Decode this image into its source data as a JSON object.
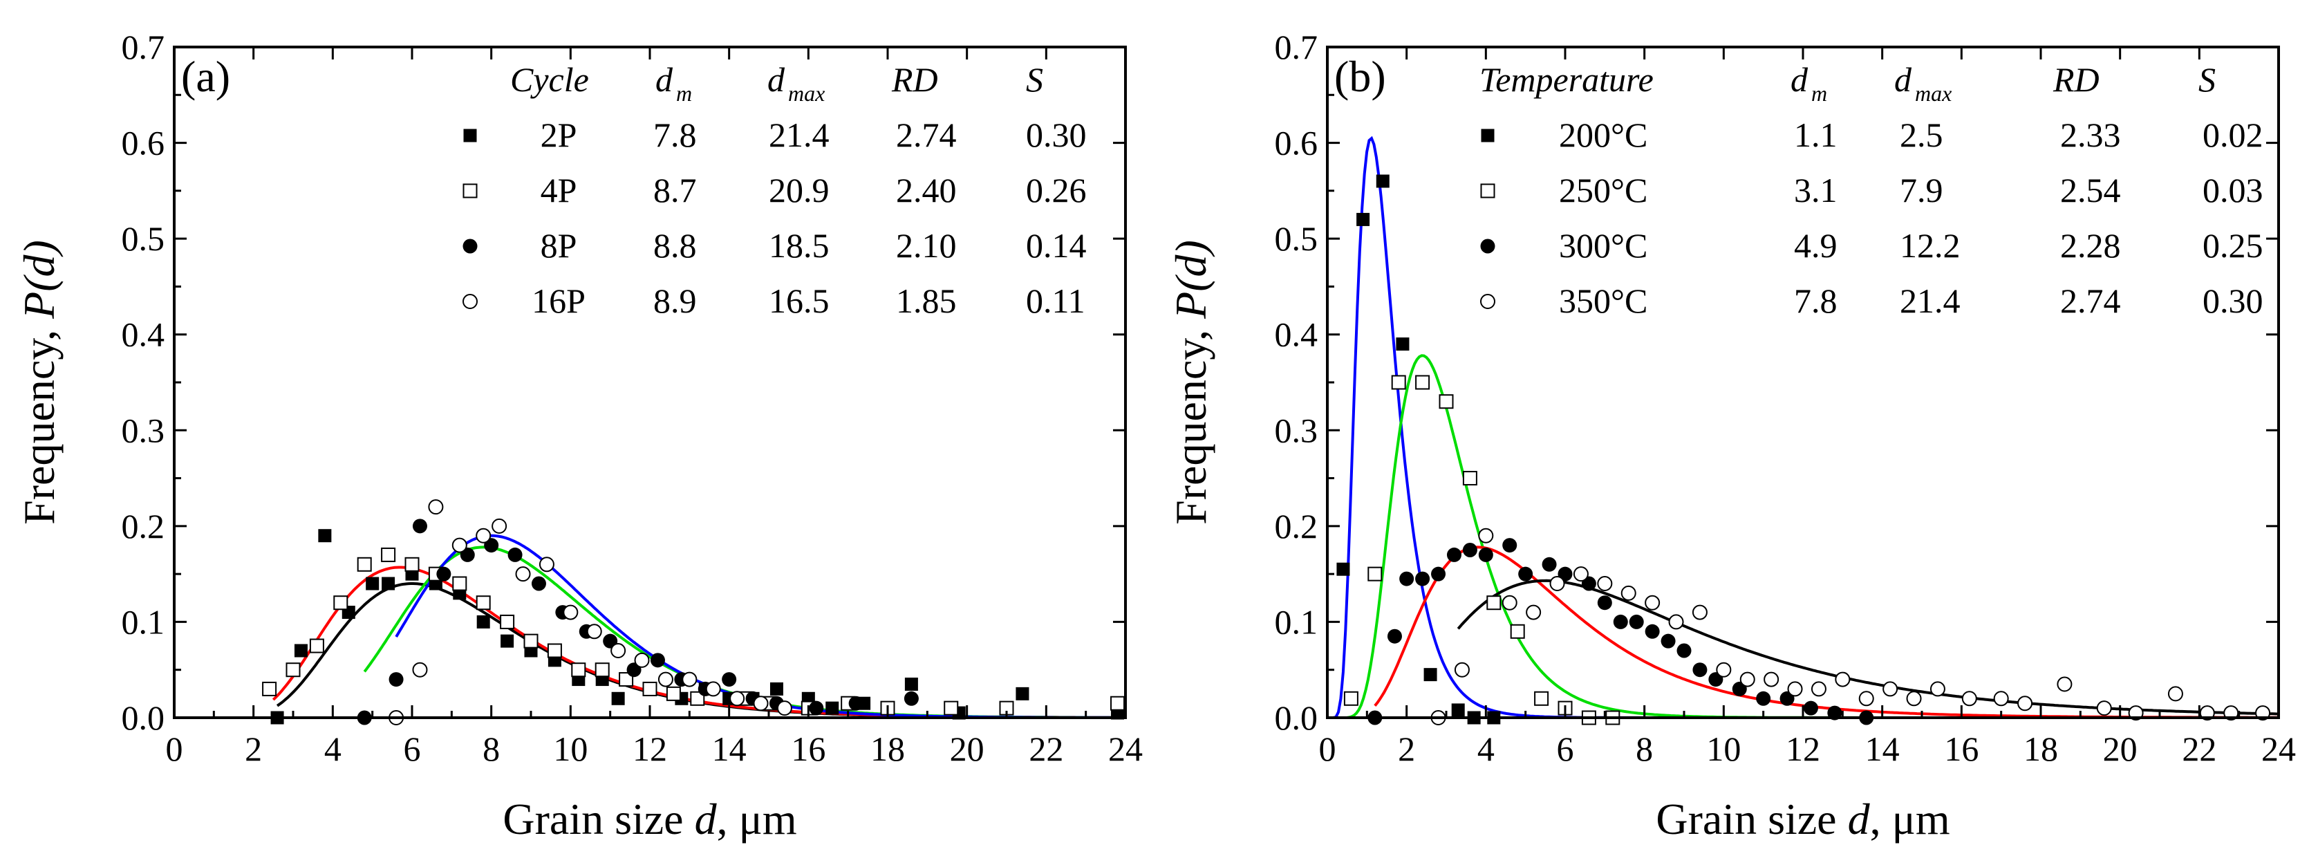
{
  "chart_data": [
    {
      "panel": "(a)",
      "type": "scatter",
      "xlabel_main": "Grain size ",
      "xlabel_var": "d",
      "xlabel_unit": ", μm",
      "ylabel_main": "Frequency, ",
      "ylabel_var": "P(d)",
      "xlim": [
        0,
        24
      ],
      "ylim": [
        0,
        0.7
      ],
      "x_ticks": [
        "0",
        "2",
        "4",
        "6",
        "8",
        "10",
        "12",
        "14",
        "16",
        "18",
        "20",
        "22",
        "24"
      ],
      "y_ticks": [
        "0.0",
        "0.1",
        "0.2",
        "0.3",
        "0.4",
        "0.5",
        "0.6",
        "0.7"
      ],
      "legend": {
        "headers": [
          "Cycle",
          "d",
          "m",
          "d",
          "max",
          "RD",
          "S"
        ],
        "rows": [
          {
            "label": "2P",
            "dm": "7.8",
            "dmax": "21.4",
            "rd": "2.74",
            "s": "0.30",
            "marker": "filled-square"
          },
          {
            "label": "4P",
            "dm": "8.7",
            "dmax": "20.9",
            "rd": "2.40",
            "s": "0.26",
            "marker": "open-square"
          },
          {
            "label": "8P",
            "dm": "8.8",
            "dmax": "18.5",
            "rd": "2.10",
            "s": "0.14",
            "marker": "filled-circle"
          },
          {
            "label": "16P",
            "dm": "8.9",
            "dmax": "16.5",
            "rd": "1.85",
            "s": "0.11",
            "marker": "open-circle"
          }
        ]
      },
      "series": [
        {
          "name": "2P",
          "marker": "filled-square",
          "fit_color": "#000000",
          "fit_peak": 6.0,
          "fit_height": 0.14,
          "fit_range": [
            2.6,
            24
          ],
          "points": [
            [
              2.6,
              0.0
            ],
            [
              3.2,
              0.07
            ],
            [
              3.8,
              0.19
            ],
            [
              4.4,
              0.11
            ],
            [
              5.0,
              0.14
            ],
            [
              5.4,
              0.14
            ],
            [
              6.0,
              0.15
            ],
            [
              6.6,
              0.14
            ],
            [
              7.2,
              0.13
            ],
            [
              7.8,
              0.1
            ],
            [
              8.4,
              0.08
            ],
            [
              9.0,
              0.07
            ],
            [
              9.6,
              0.06
            ],
            [
              10.2,
              0.04
            ],
            [
              10.8,
              0.04
            ],
            [
              11.2,
              0.02
            ],
            [
              12.0,
              0.03
            ],
            [
              12.8,
              0.02
            ],
            [
              13.4,
              0.03
            ],
            [
              14.0,
              0.02
            ],
            [
              14.6,
              0.02
            ],
            [
              15.2,
              0.03
            ],
            [
              16.0,
              0.02
            ],
            [
              16.6,
              0.01
            ],
            [
              17.4,
              0.015
            ],
            [
              18.6,
              0.035
            ],
            [
              19.8,
              0.005
            ],
            [
              21.4,
              0.025
            ],
            [
              23.8,
              0.005
            ]
          ]
        },
        {
          "name": "4P",
          "marker": "open-square",
          "fit_color": "#ff0000",
          "fit_peak": 5.7,
          "fit_height": 0.157,
          "fit_range": [
            2.5,
            24
          ],
          "points": [
            [
              2.4,
              0.03
            ],
            [
              3.0,
              0.05
            ],
            [
              3.6,
              0.075
            ],
            [
              4.2,
              0.12
            ],
            [
              4.8,
              0.16
            ],
            [
              5.4,
              0.17
            ],
            [
              6.0,
              0.16
            ],
            [
              6.6,
              0.15
            ],
            [
              7.2,
              0.14
            ],
            [
              7.8,
              0.12
            ],
            [
              8.4,
              0.1
            ],
            [
              9.0,
              0.08
            ],
            [
              9.6,
              0.07
            ],
            [
              10.2,
              0.05
            ],
            [
              10.8,
              0.05
            ],
            [
              11.4,
              0.04
            ],
            [
              12.0,
              0.03
            ],
            [
              12.6,
              0.025
            ],
            [
              13.2,
              0.02
            ],
            [
              14.4,
              0.02
            ],
            [
              15.0,
              0.015
            ],
            [
              16.0,
              0.01
            ],
            [
              17.0,
              0.015
            ],
            [
              18.0,
              0.01
            ],
            [
              19.6,
              0.01
            ],
            [
              21.0,
              0.01
            ],
            [
              23.8,
              0.015
            ]
          ]
        },
        {
          "name": "8P",
          "marker": "filled-circle",
          "fit_color": "#00dd00",
          "fit_peak": 7.8,
          "fit_height": 0.178,
          "fit_range": [
            4.8,
            24
          ],
          "points": [
            [
              4.8,
              0.0
            ],
            [
              5.6,
              0.04
            ],
            [
              6.2,
              0.2
            ],
            [
              6.8,
              0.15
            ],
            [
              7.4,
              0.17
            ],
            [
              8.0,
              0.18
            ],
            [
              8.6,
              0.17
            ],
            [
              9.2,
              0.14
            ],
            [
              9.8,
              0.11
            ],
            [
              10.4,
              0.09
            ],
            [
              11.0,
              0.08
            ],
            [
              11.6,
              0.05
            ],
            [
              12.2,
              0.06
            ],
            [
              12.8,
              0.04
            ],
            [
              13.4,
              0.03
            ],
            [
              14.0,
              0.04
            ],
            [
              14.6,
              0.02
            ],
            [
              15.2,
              0.015
            ],
            [
              16.2,
              0.01
            ],
            [
              17.2,
              0.015
            ],
            [
              18.6,
              0.02
            ]
          ]
        },
        {
          "name": "16P",
          "marker": "open-circle",
          "fit_color": "#0000ff",
          "fit_peak": 8.0,
          "fit_height": 0.19,
          "fit_range": [
            5.6,
            24
          ],
          "points": [
            [
              5.6,
              0.0
            ],
            [
              6.2,
              0.05
            ],
            [
              6.6,
              0.22
            ],
            [
              7.2,
              0.18
            ],
            [
              7.8,
              0.19
            ],
            [
              8.2,
              0.2
            ],
            [
              8.8,
              0.15
            ],
            [
              9.4,
              0.16
            ],
            [
              10.0,
              0.11
            ],
            [
              10.6,
              0.09
            ],
            [
              11.2,
              0.07
            ],
            [
              11.8,
              0.06
            ],
            [
              12.4,
              0.04
            ],
            [
              13.0,
              0.04
            ],
            [
              13.6,
              0.03
            ],
            [
              14.2,
              0.02
            ],
            [
              14.8,
              0.015
            ],
            [
              15.4,
              0.01
            ]
          ]
        }
      ]
    },
    {
      "panel": "(b)",
      "type": "scatter",
      "xlabel_main": "Grain size ",
      "xlabel_var": "d",
      "xlabel_unit": ", μm",
      "ylabel_main": "Frequency, ",
      "ylabel_var": "P(d)",
      "xlim": [
        0,
        24
      ],
      "ylim": [
        0,
        0.7
      ],
      "x_ticks": [
        "0",
        "2",
        "4",
        "6",
        "8",
        "10",
        "12",
        "14",
        "16",
        "18",
        "20",
        "22",
        "24"
      ],
      "y_ticks": [
        "0.0",
        "0.1",
        "0.2",
        "0.3",
        "0.4",
        "0.5",
        "0.6",
        "0.7"
      ],
      "legend": {
        "headers": [
          "Temperature",
          "d",
          "m",
          "d",
          "max",
          "RD",
          "S"
        ],
        "rows": [
          {
            "label": "200°C",
            "dm": "1.1",
            "dmax": "2.5",
            "rd": "2.33",
            "s": "0.02",
            "marker": "filled-square"
          },
          {
            "label": "250°C",
            "dm": "3.1",
            "dmax": "7.9",
            "rd": "2.54",
            "s": "0.03",
            "marker": "open-square"
          },
          {
            "label": "300°C",
            "dm": "4.9",
            "dmax": "12.2",
            "rd": "2.28",
            "s": "0.25",
            "marker": "filled-circle"
          },
          {
            "label": "350°C",
            "dm": "7.8",
            "dmax": "21.4",
            "rd": "2.74",
            "s": "0.30",
            "marker": "open-circle"
          }
        ]
      },
      "series": [
        {
          "name": "200°C",
          "marker": "filled-square",
          "fit_color": "#0000ff",
          "fit_peak": 1.1,
          "fit_height": 0.605,
          "fit_range": [
            0.1,
            24
          ],
          "points": [
            [
              0.4,
              0.155
            ],
            [
              0.9,
              0.52
            ],
            [
              1.4,
              0.56
            ],
            [
              1.9,
              0.39
            ],
            [
              2.6,
              0.045
            ],
            [
              3.3,
              0.008
            ],
            [
              3.7,
              0.0
            ],
            [
              4.2,
              0.0
            ]
          ]
        },
        {
          "name": "250°C",
          "marker": "open-square",
          "fit_color": "#00dd00",
          "fit_peak": 2.4,
          "fit_height": 0.378,
          "fit_range": [
            0.5,
            24
          ],
          "points": [
            [
              0.6,
              0.02
            ],
            [
              1.2,
              0.15
            ],
            [
              1.8,
              0.35
            ],
            [
              2.4,
              0.35
            ],
            [
              3.0,
              0.33
            ],
            [
              3.6,
              0.25
            ],
            [
              4.2,
              0.12
            ],
            [
              4.8,
              0.09
            ],
            [
              5.4,
              0.02
            ],
            [
              6.0,
              0.01
            ],
            [
              6.6,
              0.0
            ],
            [
              7.2,
              0.0
            ]
          ]
        },
        {
          "name": "300°C",
          "marker": "filled-circle",
          "fit_color": "#ff0000",
          "fit_peak": 3.8,
          "fit_height": 0.178,
          "fit_range": [
            1.2,
            24
          ],
          "points": [
            [
              1.2,
              0.0
            ],
            [
              1.7,
              0.085
            ],
            [
              2.0,
              0.145
            ],
            [
              2.4,
              0.145
            ],
            [
              2.8,
              0.15
            ],
            [
              3.2,
              0.17
            ],
            [
              3.6,
              0.175
            ],
            [
              4.0,
              0.17
            ],
            [
              4.6,
              0.18
            ],
            [
              5.0,
              0.15
            ],
            [
              5.6,
              0.16
            ],
            [
              6.0,
              0.15
            ],
            [
              6.6,
              0.14
            ],
            [
              7.0,
              0.12
            ],
            [
              7.4,
              0.1
            ],
            [
              7.8,
              0.1
            ],
            [
              8.2,
              0.09
            ],
            [
              8.6,
              0.08
            ],
            [
              9.0,
              0.07
            ],
            [
              9.4,
              0.05
            ],
            [
              9.8,
              0.04
            ],
            [
              10.4,
              0.03
            ],
            [
              11.0,
              0.02
            ],
            [
              11.6,
              0.02
            ],
            [
              12.2,
              0.01
            ],
            [
              12.8,
              0.005
            ],
            [
              13.6,
              0.0
            ]
          ]
        },
        {
          "name": "350°C",
          "marker": "open-circle",
          "fit_color": "#000000",
          "fit_peak": 5.5,
          "fit_height": 0.143,
          "fit_range": [
            3.3,
            24
          ],
          "points": [
            [
              2.8,
              0.0
            ],
            [
              3.4,
              0.05
            ],
            [
              4.0,
              0.19
            ],
            [
              4.6,
              0.12
            ],
            [
              5.2,
              0.11
            ],
            [
              5.8,
              0.14
            ],
            [
              6.4,
              0.15
            ],
            [
              7.0,
              0.14
            ],
            [
              7.6,
              0.13
            ],
            [
              8.2,
              0.12
            ],
            [
              8.8,
              0.1
            ],
            [
              9.4,
              0.11
            ],
            [
              10.0,
              0.05
            ],
            [
              10.6,
              0.04
            ],
            [
              11.2,
              0.04
            ],
            [
              11.8,
              0.03
            ],
            [
              12.4,
              0.03
            ],
            [
              13.0,
              0.04
            ],
            [
              13.6,
              0.02
            ],
            [
              14.2,
              0.03
            ],
            [
              14.8,
              0.02
            ],
            [
              15.4,
              0.03
            ],
            [
              16.2,
              0.02
            ],
            [
              17.0,
              0.02
            ],
            [
              17.6,
              0.015
            ],
            [
              18.6,
              0.035
            ],
            [
              19.6,
              0.01
            ],
            [
              20.4,
              0.005
            ],
            [
              21.4,
              0.025
            ],
            [
              22.2,
              0.005
            ],
            [
              22.8,
              0.005
            ],
            [
              23.6,
              0.005
            ]
          ]
        }
      ]
    }
  ]
}
